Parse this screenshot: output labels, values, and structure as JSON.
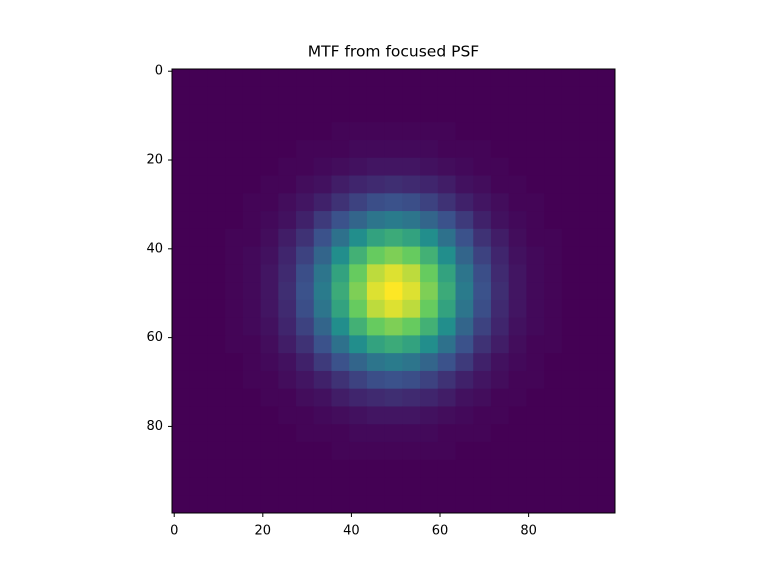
{
  "chart_data": {
    "type": "heatmap",
    "title": "MTF from focused PSF",
    "cmap": "viridis",
    "xlim": [
      -0.5,
      99.5
    ],
    "ylim": [
      99.5,
      -0.5
    ],
    "xticks": [
      0,
      20,
      40,
      60,
      80
    ],
    "yticks": [
      0,
      20,
      40,
      60,
      80
    ],
    "z": [
      [
        0,
        0,
        0,
        0,
        0,
        0,
        0,
        0,
        0,
        0,
        0,
        0,
        0,
        0,
        0,
        0,
        0,
        0,
        0,
        0,
        0,
        0,
        0,
        0,
        0
      ],
      [
        0,
        0,
        0,
        0,
        0,
        0,
        0,
        0,
        0,
        0,
        0,
        0,
        0,
        0,
        0,
        0,
        0,
        0,
        0,
        0,
        0,
        0,
        0,
        0,
        0
      ],
      [
        0,
        0,
        0,
        0,
        0,
        0,
        0,
        0,
        0,
        0,
        0,
        0,
        0,
        0,
        0,
        0,
        0,
        0,
        0,
        0,
        0,
        0,
        0,
        0,
        0
      ],
      [
        0,
        0,
        0,
        0,
        0,
        0,
        0,
        0,
        0,
        0.01,
        0.01,
        0.01,
        0.01,
        0.01,
        0.01,
        0.01,
        0,
        0,
        0,
        0,
        0,
        0,
        0,
        0,
        0
      ],
      [
        0,
        0,
        0,
        0,
        0,
        0,
        0,
        0.01,
        0.01,
        0.01,
        0.02,
        0.02,
        0.02,
        0.02,
        0.02,
        0.01,
        0.01,
        0.01,
        0,
        0,
        0,
        0,
        0,
        0,
        0
      ],
      [
        0,
        0,
        0,
        0,
        0,
        0,
        0.01,
        0.01,
        0.02,
        0.03,
        0.04,
        0.05,
        0.05,
        0.05,
        0.04,
        0.03,
        0.02,
        0.01,
        0.01,
        0,
        0,
        0,
        0,
        0,
        0
      ],
      [
        0,
        0,
        0,
        0,
        0,
        0.01,
        0.01,
        0.03,
        0.04,
        0.07,
        0.09,
        0.1,
        0.11,
        0.1,
        0.09,
        0.07,
        0.04,
        0.03,
        0.01,
        0.01,
        0,
        0,
        0,
        0,
        0
      ],
      [
        0,
        0,
        0,
        0,
        0.01,
        0.01,
        0.03,
        0.05,
        0.08,
        0.12,
        0.16,
        0.19,
        0.2,
        0.19,
        0.16,
        0.12,
        0.08,
        0.05,
        0.03,
        0.01,
        0.01,
        0,
        0,
        0,
        0
      ],
      [
        0,
        0,
        0,
        0,
        0.01,
        0.02,
        0.04,
        0.08,
        0.14,
        0.2,
        0.26,
        0.31,
        0.33,
        0.31,
        0.26,
        0.2,
        0.14,
        0.08,
        0.04,
        0.02,
        0.01,
        0,
        0,
        0,
        0
      ],
      [
        0,
        0,
        0,
        0.01,
        0.01,
        0.03,
        0.07,
        0.12,
        0.2,
        0.3,
        0.39,
        0.46,
        0.49,
        0.46,
        0.39,
        0.3,
        0.2,
        0.12,
        0.07,
        0.03,
        0.01,
        0.01,
        0,
        0,
        0
      ],
      [
        0,
        0,
        0,
        0.01,
        0.02,
        0.04,
        0.09,
        0.16,
        0.26,
        0.39,
        0.51,
        0.61,
        0.64,
        0.61,
        0.51,
        0.39,
        0.26,
        0.16,
        0.09,
        0.04,
        0.02,
        0.01,
        0,
        0,
        0
      ],
      [
        0,
        0,
        0,
        0.01,
        0.02,
        0.05,
        0.1,
        0.19,
        0.31,
        0.46,
        0.61,
        0.72,
        0.76,
        0.72,
        0.61,
        0.46,
        0.31,
        0.19,
        0.1,
        0.05,
        0.02,
        0.01,
        0,
        0,
        0
      ],
      [
        0,
        0,
        0,
        0.01,
        0.02,
        0.05,
        0.11,
        0.2,
        0.33,
        0.49,
        0.64,
        0.76,
        0.8,
        0.76,
        0.64,
        0.49,
        0.33,
        0.2,
        0.11,
        0.05,
        0.02,
        0.01,
        0,
        0,
        0
      ],
      [
        0,
        0,
        0,
        0.01,
        0.02,
        0.05,
        0.1,
        0.19,
        0.31,
        0.46,
        0.61,
        0.72,
        0.76,
        0.72,
        0.61,
        0.46,
        0.31,
        0.19,
        0.1,
        0.05,
        0.02,
        0.01,
        0,
        0,
        0
      ],
      [
        0,
        0,
        0,
        0.01,
        0.02,
        0.04,
        0.09,
        0.16,
        0.26,
        0.39,
        0.51,
        0.61,
        0.64,
        0.61,
        0.51,
        0.39,
        0.26,
        0.16,
        0.09,
        0.04,
        0.02,
        0.01,
        0,
        0,
        0
      ],
      [
        0,
        0,
        0,
        0.01,
        0.01,
        0.03,
        0.07,
        0.12,
        0.2,
        0.3,
        0.39,
        0.46,
        0.49,
        0.46,
        0.39,
        0.3,
        0.2,
        0.12,
        0.07,
        0.03,
        0.01,
        0.01,
        0,
        0,
        0
      ],
      [
        0,
        0,
        0,
        0,
        0.01,
        0.02,
        0.04,
        0.08,
        0.14,
        0.2,
        0.26,
        0.31,
        0.33,
        0.31,
        0.26,
        0.2,
        0.14,
        0.08,
        0.04,
        0.02,
        0.01,
        0,
        0,
        0,
        0
      ],
      [
        0,
        0,
        0,
        0,
        0.01,
        0.01,
        0.03,
        0.05,
        0.08,
        0.12,
        0.16,
        0.19,
        0.2,
        0.19,
        0.16,
        0.12,
        0.08,
        0.05,
        0.03,
        0.01,
        0.01,
        0,
        0,
        0,
        0
      ],
      [
        0,
        0,
        0,
        0,
        0,
        0.01,
        0.01,
        0.03,
        0.04,
        0.07,
        0.09,
        0.1,
        0.11,
        0.1,
        0.09,
        0.07,
        0.04,
        0.03,
        0.01,
        0.01,
        0,
        0,
        0,
        0,
        0
      ],
      [
        0,
        0,
        0,
        0,
        0,
        0,
        0.01,
        0.01,
        0.02,
        0.03,
        0.04,
        0.05,
        0.05,
        0.05,
        0.04,
        0.03,
        0.02,
        0.01,
        0.01,
        0,
        0,
        0,
        0,
        0,
        0
      ],
      [
        0,
        0,
        0,
        0,
        0,
        0,
        0,
        0.01,
        0.01,
        0.01,
        0.02,
        0.02,
        0.02,
        0.02,
        0.02,
        0.01,
        0.01,
        0.01,
        0,
        0,
        0,
        0,
        0,
        0,
        0
      ],
      [
        0,
        0,
        0,
        0,
        0,
        0,
        0,
        0,
        0,
        0.01,
        0.01,
        0.01,
        0.01,
        0.01,
        0.01,
        0.01,
        0,
        0,
        0,
        0,
        0,
        0,
        0,
        0,
        0
      ],
      [
        0,
        0,
        0,
        0,
        0,
        0,
        0,
        0,
        0,
        0,
        0,
        0,
        0,
        0,
        0,
        0,
        0,
        0,
        0,
        0,
        0,
        0,
        0,
        0,
        0
      ],
      [
        0,
        0,
        0,
        0,
        0,
        0,
        0,
        0,
        0,
        0,
        0,
        0,
        0,
        0,
        0,
        0,
        0,
        0,
        0,
        0,
        0,
        0,
        0,
        0,
        0
      ],
      [
        0,
        0,
        0,
        0,
        0,
        0,
        0,
        0,
        0,
        0,
        0,
        0,
        0,
        0,
        0,
        0,
        0,
        0,
        0,
        0,
        0,
        0,
        0,
        0,
        0
      ]
    ]
  }
}
